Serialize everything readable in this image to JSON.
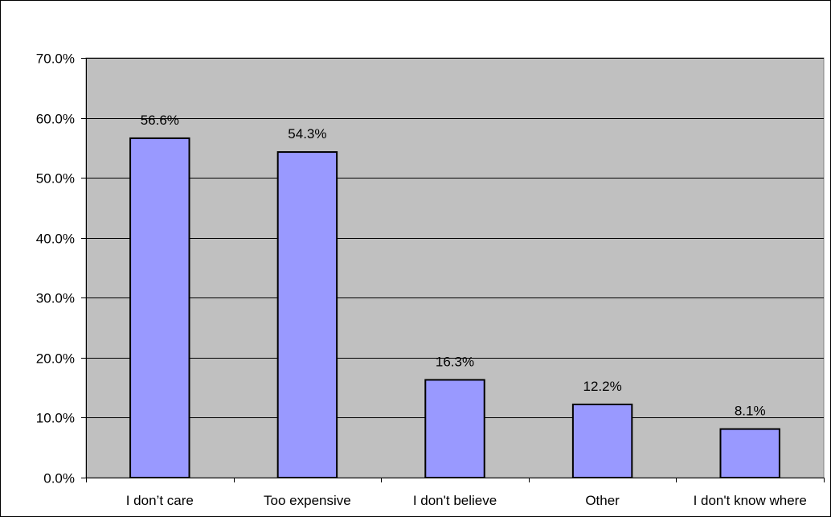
{
  "chart_data": {
    "type": "bar",
    "title": "",
    "xlabel": "",
    "ylabel": "",
    "categories": [
      "I don’t care",
      "Too expensive",
      "I don't believe",
      "Other",
      "I don't know where"
    ],
    "values": [
      56.6,
      54.3,
      16.3,
      12.2,
      8.1
    ],
    "data_labels": [
      "56.6%",
      "54.3%",
      "16.3%",
      "12.2%",
      "8.1%"
    ],
    "ylim": [
      0,
      70
    ],
    "yticks": [
      0,
      10,
      20,
      30,
      40,
      50,
      60,
      70
    ],
    "ytick_labels": [
      "0.0%",
      "10.0%",
      "20.0%",
      "30.0%",
      "40.0%",
      "50.0%",
      "60.0%",
      "70.0%"
    ],
    "grid": true,
    "legend": "none",
    "colors": {
      "plot_background": "#c0c0c0",
      "bar_fill": "#9999ff",
      "bar_stroke": "#000000",
      "gridline": "#000000",
      "page_background": "#ffffff"
    }
  }
}
